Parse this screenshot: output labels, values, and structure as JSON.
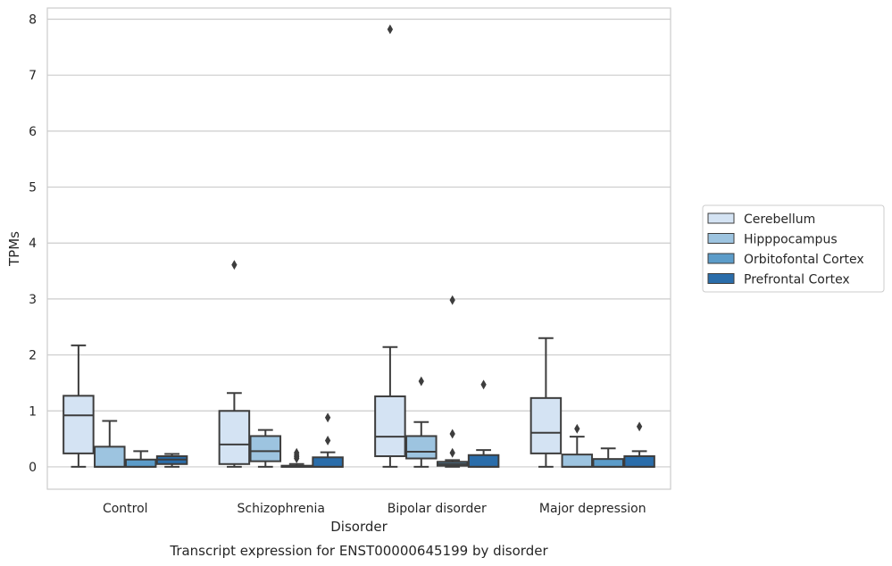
{
  "chart_data": {
    "type": "box",
    "caption": "Transcript expression for ENST00000645199 by disorder",
    "xlabel": "Disorder",
    "ylabel": "TPMs",
    "ylim": [
      -0.4,
      8.2
    ],
    "yticks": [
      0,
      1,
      2,
      3,
      4,
      5,
      6,
      7,
      8
    ],
    "grid": true,
    "legend_position": "right",
    "categories": [
      "Control",
      "Schizophrenia",
      "Bipolar disorder",
      "Major depression"
    ],
    "series": [
      {
        "name": "Cerebellum",
        "color": "#d4e3f3",
        "boxes": [
          {
            "whisker_low": 0,
            "q1": 0.24,
            "median": 0.92,
            "q3": 1.27,
            "whisker_high": 2.17,
            "outliers": []
          },
          {
            "whisker_low": 0,
            "q1": 0.05,
            "median": 0.4,
            "q3": 1.0,
            "whisker_high": 1.32,
            "outliers": [
              3.61
            ]
          },
          {
            "whisker_low": 0,
            "q1": 0.19,
            "median": 0.54,
            "q3": 1.26,
            "whisker_high": 2.14,
            "outliers": [
              7.82
            ]
          },
          {
            "whisker_low": 0,
            "q1": 0.24,
            "median": 0.61,
            "q3": 1.23,
            "whisker_high": 2.3,
            "outliers": []
          }
        ]
      },
      {
        "name": "Hipppocampus",
        "color": "#9dc4e0",
        "boxes": [
          {
            "whisker_low": 0,
            "q1": 0.0,
            "median": 0.0,
            "q3": 0.36,
            "whisker_high": 0.82,
            "outliers": []
          },
          {
            "whisker_low": 0,
            "q1": 0.1,
            "median": 0.28,
            "q3": 0.55,
            "whisker_high": 0.66,
            "outliers": []
          },
          {
            "whisker_low": 0,
            "q1": 0.15,
            "median": 0.27,
            "q3": 0.55,
            "whisker_high": 0.8,
            "outliers": [
              1.53
            ]
          },
          {
            "whisker_low": 0,
            "q1": 0.0,
            "median": 0.0,
            "q3": 0.22,
            "whisker_high": 0.54,
            "outliers": [
              0.68
            ]
          }
        ]
      },
      {
        "name": "Orbitofontal Cortex",
        "color": "#5c9cc9",
        "boxes": [
          {
            "whisker_low": 0,
            "q1": 0.0,
            "median": 0.0,
            "q3": 0.13,
            "whisker_high": 0.28,
            "outliers": []
          },
          {
            "whisker_low": 0,
            "q1": 0.0,
            "median": 0.0,
            "q3": 0.02,
            "whisker_high": 0.05,
            "outliers": [
              0.15,
              0.18,
              0.21,
              0.25
            ]
          },
          {
            "whisker_low": 0,
            "q1": 0.02,
            "median": 0.05,
            "q3": 0.09,
            "whisker_high": 0.12,
            "outliers": [
              0.25,
              0.59,
              2.98
            ]
          },
          {
            "whisker_low": 0,
            "q1": 0.0,
            "median": 0.0,
            "q3": 0.14,
            "whisker_high": 0.33,
            "outliers": []
          }
        ]
      },
      {
        "name": "Prefrontal Cortex",
        "color": "#2a6daa",
        "boxes": [
          {
            "whisker_low": 0,
            "q1": 0.05,
            "median": 0.13,
            "q3": 0.19,
            "whisker_high": 0.23,
            "outliers": []
          },
          {
            "whisker_low": 0,
            "q1": 0.0,
            "median": 0.0,
            "q3": 0.17,
            "whisker_high": 0.26,
            "outliers": [
              0.47,
              0.88
            ]
          },
          {
            "whisker_low": 0,
            "q1": 0.0,
            "median": 0.0,
            "q3": 0.21,
            "whisker_high": 0.3,
            "outliers": [
              1.47
            ]
          },
          {
            "whisker_low": 0,
            "q1": 0.0,
            "median": 0.0,
            "q3": 0.19,
            "whisker_high": 0.28,
            "outliers": [
              0.72
            ]
          }
        ]
      }
    ]
  }
}
